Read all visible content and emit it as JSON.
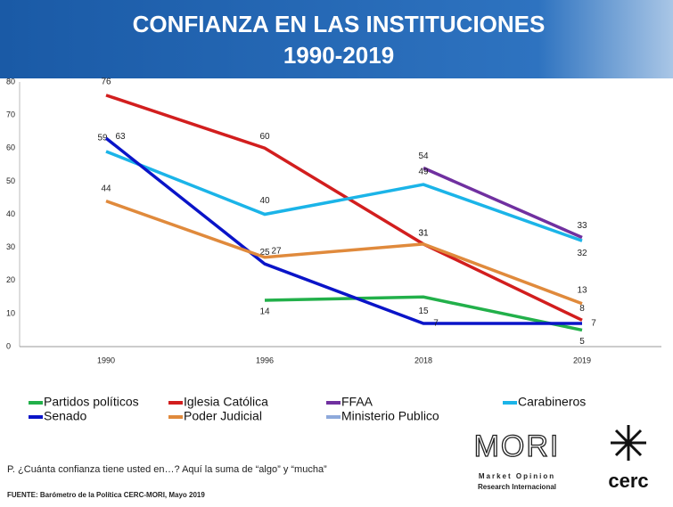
{
  "chart_data": {
    "type": "line",
    "title": "CONFIANZA EN LAS INSTITUCIONES",
    "subtitle": "1990-2019",
    "categories": [
      "1990",
      "1996",
      "2018",
      "2019"
    ],
    "series": [
      {
        "name": "Partidos políticos",
        "color": "#22b04a",
        "values": [
          null,
          14,
          15,
          5
        ]
      },
      {
        "name": "Iglesia Católica",
        "color": "#d21e1e",
        "values": [
          76,
          60,
          31,
          8
        ]
      },
      {
        "name": "FFAA",
        "color": "#7030a0",
        "values": [
          null,
          null,
          54,
          33
        ]
      },
      {
        "name": "Carabineros",
        "color": "#1bb4e8",
        "values": [
          59,
          40,
          49,
          32
        ]
      },
      {
        "name": "Senado",
        "color": "#0a14c8",
        "values": [
          63,
          25,
          7,
          7
        ]
      },
      {
        "name": "Poder Judicial",
        "color": "#e08a3c",
        "values": [
          44,
          27,
          31,
          13
        ]
      },
      {
        "name": "Ministerio Publico",
        "color": "#8ea9db",
        "values": [
          null,
          null,
          null,
          null
        ]
      }
    ],
    "ylim": [
      0,
      80
    ],
    "yticks": [
      0,
      10,
      20,
      30,
      40,
      50,
      60,
      70,
      80
    ],
    "grid": false,
    "question": "P. ¿Cuánta confianza tiene usted en…? Aquí la suma de “algo” y “mucha”",
    "source": "FUENTE: Barómetro de la Política CERC-MORI, Mayo 2019",
    "logo_mori": "MORI",
    "logo_mori_line1": "Market Opinion",
    "logo_mori_line2": "Research Internacional",
    "logo_cerc": "cerc"
  }
}
